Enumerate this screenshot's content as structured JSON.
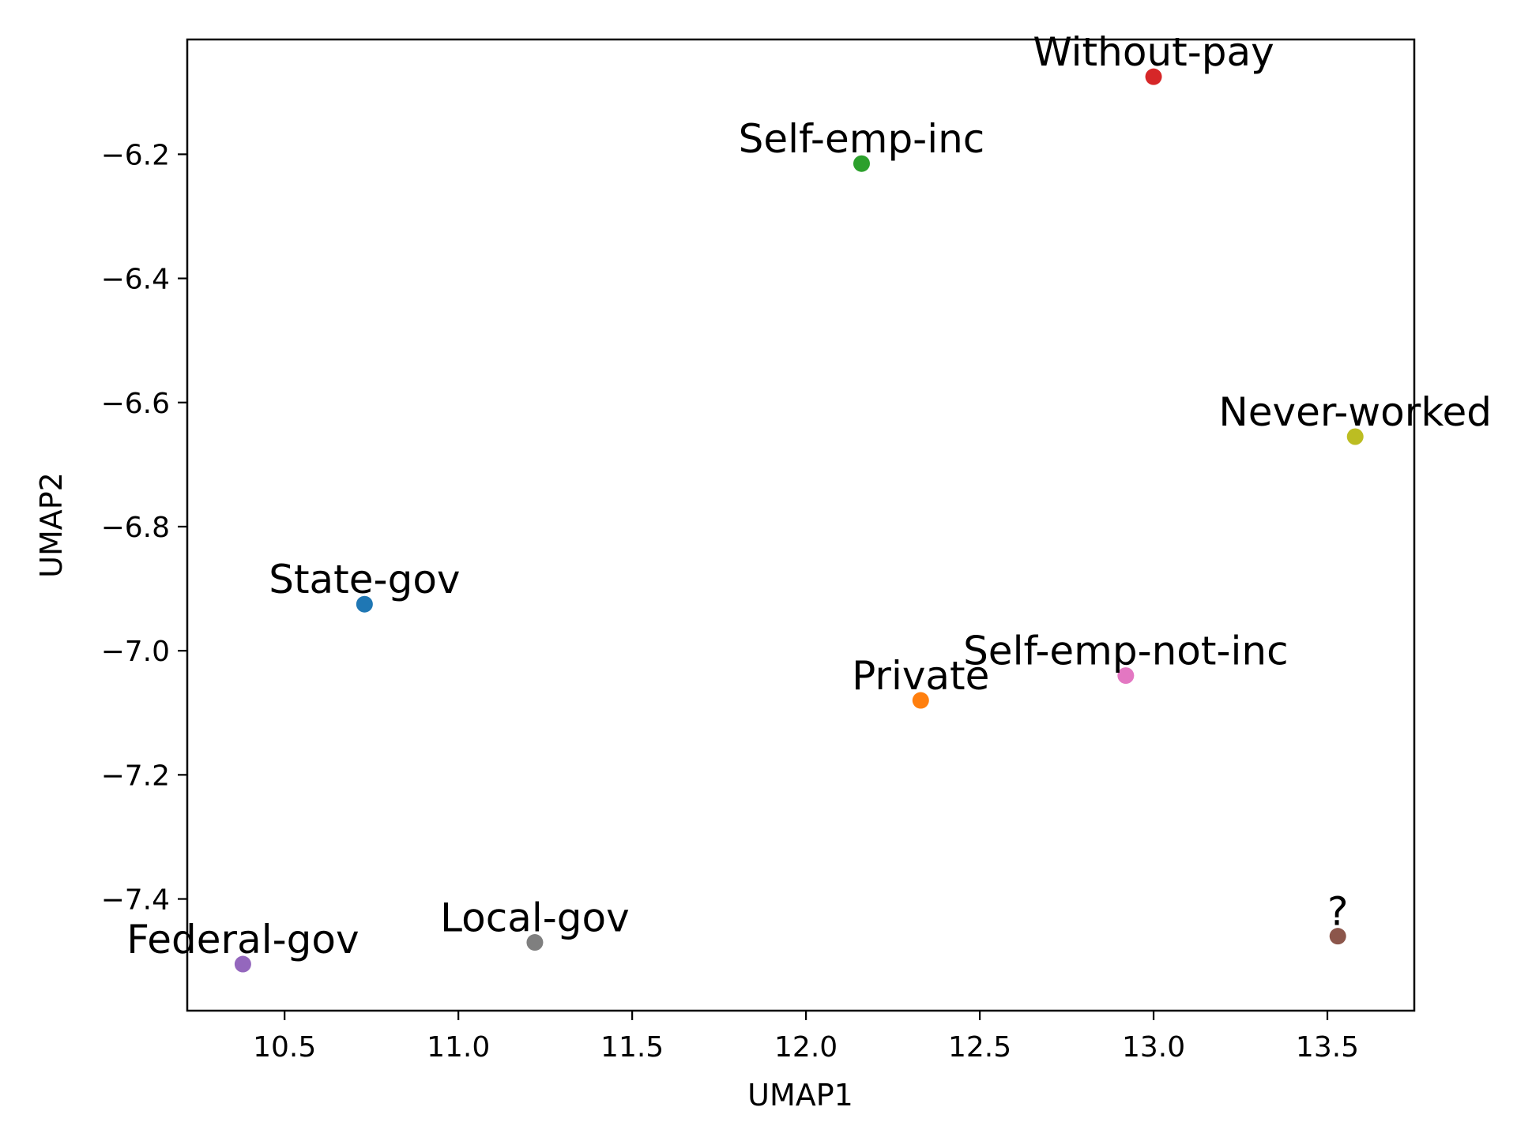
{
  "chart_data": {
    "type": "scatter",
    "title": "",
    "xlabel": "UMAP1",
    "ylabel": "UMAP2",
    "xlim": [
      10.22,
      13.75
    ],
    "ylim": [
      -7.58,
      -6.015
    ],
    "xticks": [
      10.5,
      11.0,
      11.5,
      12.0,
      12.5,
      13.0,
      13.5
    ],
    "yticks": [
      -6.2,
      -6.4,
      -6.6,
      -6.8,
      -7.0,
      -7.2,
      -7.4
    ],
    "xtick_labels": [
      "10.5",
      "11.0",
      "11.5",
      "12.0",
      "12.5",
      "13.0",
      "13.5"
    ],
    "ytick_labels": [
      "−6.2",
      "−6.4",
      "−6.6",
      "−6.8",
      "−7.0",
      "−7.2",
      "−7.4"
    ],
    "grid": false,
    "legend": false,
    "points": [
      {
        "label": "State-gov",
        "x": 10.73,
        "y": -6.925,
        "color": "#1f77b4"
      },
      {
        "label": "Private",
        "x": 12.33,
        "y": -7.08,
        "color": "#ff7f0e"
      },
      {
        "label": "Self-emp-inc",
        "x": 12.16,
        "y": -6.215,
        "color": "#2ca02c"
      },
      {
        "label": "Without-pay",
        "x": 13.0,
        "y": -6.075,
        "color": "#d62728"
      },
      {
        "label": "Federal-gov",
        "x": 10.38,
        "y": -7.505,
        "color": "#9467bd"
      },
      {
        "label": "?",
        "x": 13.53,
        "y": -7.46,
        "color": "#8c564b"
      },
      {
        "label": "Self-emp-not-inc",
        "x": 12.92,
        "y": -7.04,
        "color": "#e377c2"
      },
      {
        "label": "Local-gov",
        "x": 11.22,
        "y": -7.47,
        "color": "#7f7f7f"
      },
      {
        "label": "Never-worked",
        "x": 13.58,
        "y": -6.655,
        "color": "#bcbd22"
      }
    ]
  }
}
